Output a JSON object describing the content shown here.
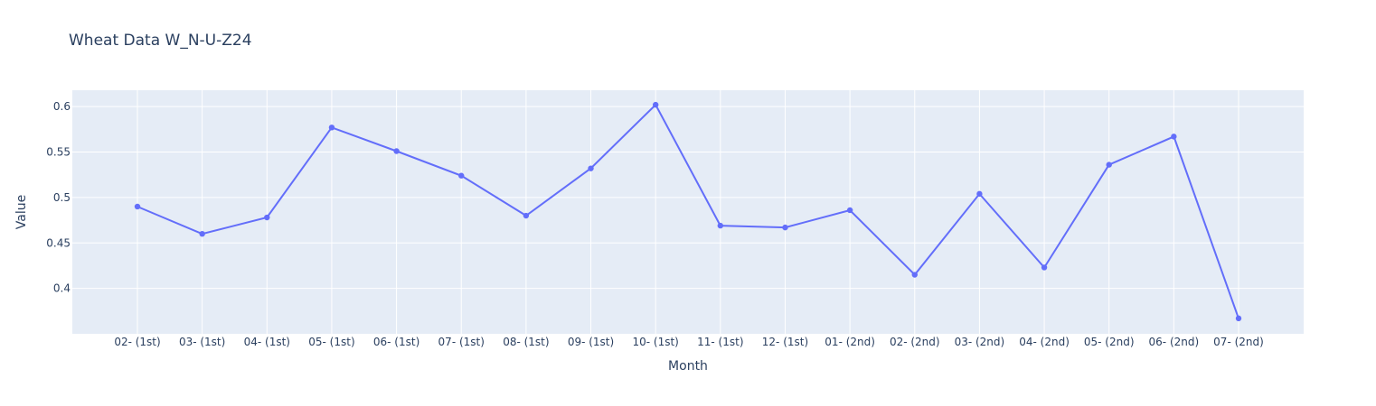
{
  "chart_data": {
    "type": "line",
    "title": "Wheat Data W_N-U-Z24",
    "xlabel": "Month",
    "ylabel": "Value",
    "categories": [
      "02- (1st)",
      "03- (1st)",
      "04- (1st)",
      "05- (1st)",
      "06- (1st)",
      "07- (1st)",
      "08- (1st)",
      "09- (1st)",
      "10- (1st)",
      "11- (1st)",
      "12- (1st)",
      "01- (2nd)",
      "02- (2nd)",
      "03- (2nd)",
      "04- (2nd)",
      "05- (2nd)",
      "06- (2nd)",
      "07- (2nd)"
    ],
    "values": [
      0.49,
      0.46,
      0.478,
      0.577,
      0.551,
      0.524,
      0.48,
      0.532,
      0.602,
      0.469,
      0.467,
      0.486,
      0.415,
      0.504,
      0.423,
      0.536,
      0.567,
      0.367
    ],
    "ylim": [
      0.35,
      0.618
    ],
    "yticks": [
      0.4,
      0.45,
      0.5,
      0.55,
      0.6
    ],
    "ytick_labels": [
      "0.4",
      "0.45",
      "0.5",
      "0.55",
      "0.6"
    ],
    "grid": true,
    "line_color": "#636efa",
    "plot_bg": "#e5ecf6"
  }
}
